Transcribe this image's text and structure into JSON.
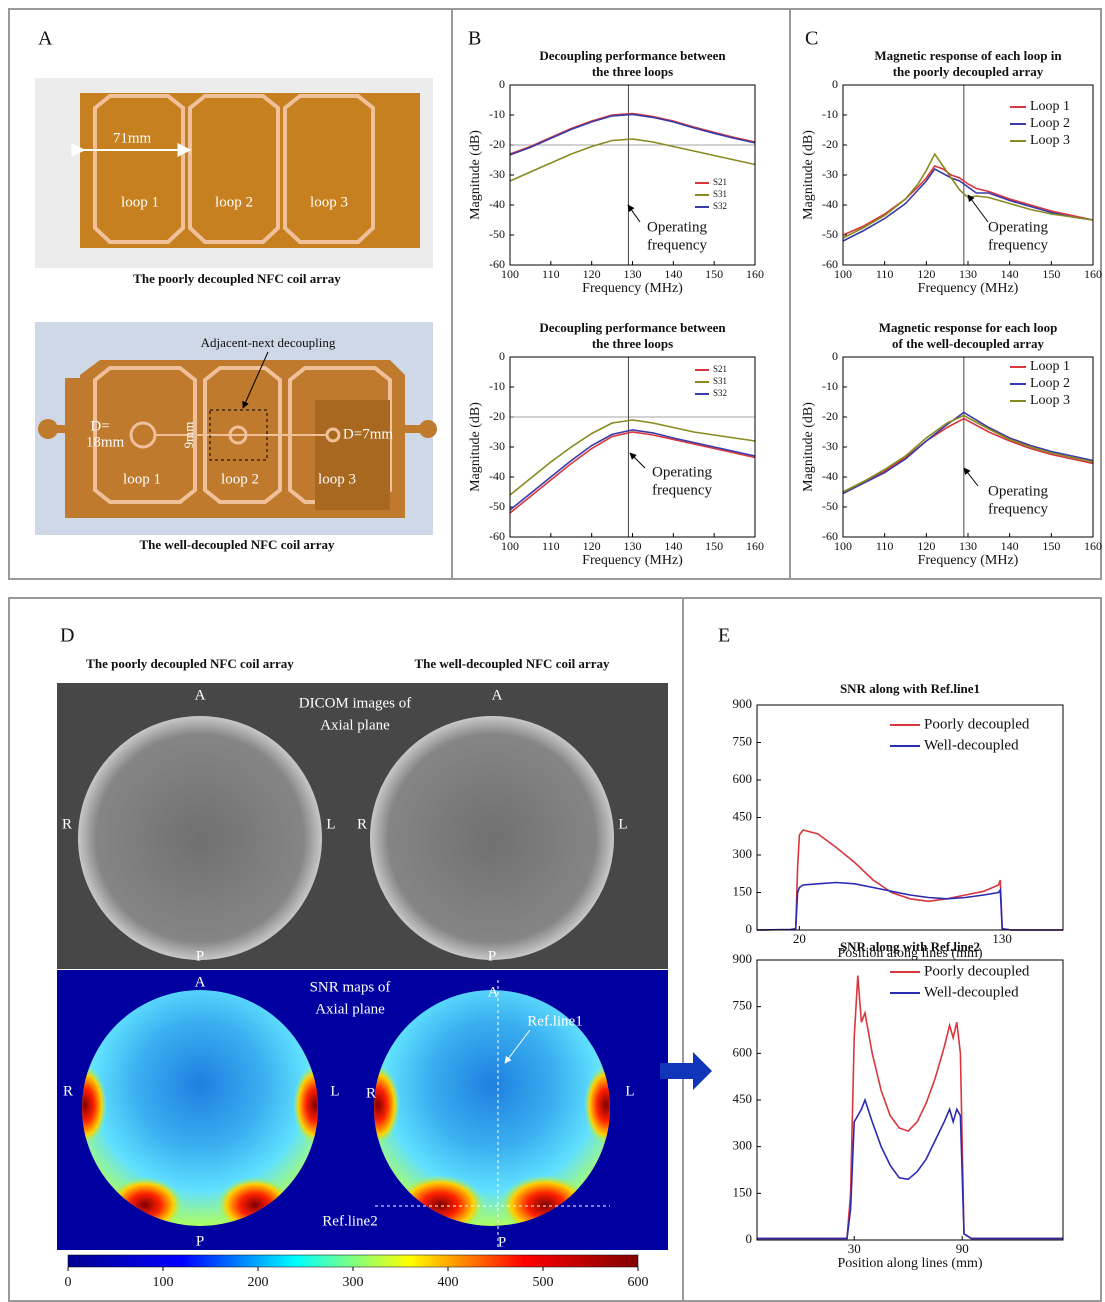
{
  "panels": {
    "labels": [
      "A",
      "B",
      "C",
      "D",
      "E"
    ],
    "A": {
      "photo1": {
        "dimension": "71mm",
        "loops": [
          "loop 1",
          "loop 2",
          "loop 3"
        ],
        "caption": "The poorly decoupled NFC coil array"
      },
      "photo2": {
        "annotation": "Adjacent-next decoupling",
        "d1": [
          "D=",
          "18mm"
        ],
        "gap": "9mm",
        "d2": "D=7mm",
        "loops": [
          "loop 1",
          "loop 2",
          "loop 3"
        ],
        "caption": "The well-decoupled NFC coil array"
      }
    },
    "D": {
      "headers": [
        "The poorly decoupled NFC coil array",
        "The well-decoupled NFC coil array"
      ],
      "dicom_title": [
        "DICOM images of",
        "Axial plane"
      ],
      "snr_title": [
        "SNR maps of",
        "Axial plane"
      ],
      "orientation": [
        "A",
        "R",
        "L",
        "P"
      ],
      "ref_lines": [
        "Ref.line1",
        "Ref.line2"
      ]
    }
  },
  "chart_data": [
    {
      "type": "line",
      "title": [
        "Decoupling performance between",
        "the three loops"
      ],
      "xlabel": "Frequency (MHz)",
      "ylabel": "Magnitude (dB)",
      "x": [
        100,
        105,
        110,
        115,
        120,
        125,
        130,
        135,
        140,
        145,
        150,
        155,
        160
      ],
      "series": [
        {
          "name": "S21",
          "color": "#d9363e",
          "values": [
            -23,
            -20.5,
            -17.5,
            -14.5,
            -12,
            -10,
            -9.5,
            -10.5,
            -12,
            -14,
            -15.8,
            -17.5,
            -19
          ]
        },
        {
          "name": "S31",
          "color": "#8a8a20",
          "values": [
            -32,
            -29,
            -26,
            -23,
            -20.5,
            -18.5,
            -18,
            -19,
            -20.5,
            -22,
            -23.5,
            -25,
            -26.5
          ]
        },
        {
          "name": "S32",
          "color": "#3a3aa8",
          "values": [
            -23.3,
            -20.8,
            -17.8,
            -14.8,
            -12.3,
            -10.3,
            -9.8,
            -10.8,
            -12.3,
            -14.3,
            -16.1,
            -17.8,
            -19.3
          ]
        }
      ],
      "xlim": [
        100,
        160
      ],
      "ylim": [
        -60,
        0
      ],
      "xticks": [
        100,
        110,
        120,
        130,
        140,
        150,
        160
      ],
      "yticks": [
        -60,
        -50,
        -40,
        -30,
        -20,
        -10,
        0
      ],
      "vline": 129,
      "hline": -20,
      "annotation": [
        "Operating",
        "frequency"
      ]
    },
    {
      "type": "line",
      "title": [
        "Decoupling performance between",
        "the three loops"
      ],
      "xlabel": "Frequency (MHz)",
      "ylabel": "Magnitude (dB)",
      "x": [
        100,
        105,
        110,
        115,
        120,
        125,
        130,
        135,
        140,
        145,
        150,
        155,
        160
      ],
      "series": [
        {
          "name": "S21",
          "color": "#d9363e",
          "values": [
            -52,
            -46.5,
            -41,
            -35.5,
            -30.5,
            -26.5,
            -25,
            -26,
            -27.5,
            -29,
            -30.5,
            -32,
            -33.5
          ]
        },
        {
          "name": "S31",
          "color": "#8a8a20",
          "values": [
            -46,
            -40.5,
            -35,
            -30,
            -25.5,
            -22,
            -21,
            -22,
            -23.5,
            -25,
            -26,
            -27,
            -28
          ]
        },
        {
          "name": "S32",
          "color": "#3a3aa8",
          "values": [
            -51,
            -45.5,
            -40,
            -34.5,
            -29.5,
            -25.8,
            -24.3,
            -25.3,
            -27,
            -28.5,
            -30,
            -31.5,
            -33
          ]
        }
      ],
      "xlim": [
        100,
        160
      ],
      "ylim": [
        -60,
        0
      ],
      "xticks": [
        100,
        110,
        120,
        130,
        140,
        150,
        160
      ],
      "yticks": [
        -60,
        -50,
        -40,
        -30,
        -20,
        -10,
        0
      ],
      "vline": 129,
      "hline": -20,
      "annotation": [
        "Operating",
        "frequency"
      ]
    },
    {
      "type": "line",
      "title": [
        "Magnetic response of each loop in",
        "the poorly decoupled array"
      ],
      "xlabel": "Frequency (MHz)",
      "ylabel": "Magnitude (dB)",
      "x": [
        100,
        105,
        110,
        115,
        118,
        120,
        122,
        124,
        126,
        128,
        130,
        132,
        135,
        140,
        145,
        150,
        155,
        160
      ],
      "series": [
        {
          "name": "Loop 1",
          "color": "#d9363e",
          "values": [
            -50,
            -47,
            -43,
            -38,
            -34,
            -31,
            -27,
            -28,
            -30,
            -31,
            -33,
            -34.5,
            -35.5,
            -38,
            -40,
            -42,
            -43.5,
            -45
          ]
        },
        {
          "name": "Loop 2",
          "color": "#3a3aa8",
          "values": [
            -52,
            -48.5,
            -44.5,
            -39.5,
            -35,
            -32,
            -28,
            -29.5,
            -31,
            -32,
            -34,
            -36,
            -36,
            -38.5,
            -40.5,
            -42.5,
            -44,
            -45
          ]
        },
        {
          "name": "Loop 3",
          "color": "#8a8a20",
          "values": [
            -51,
            -47.5,
            -43.5,
            -38,
            -33,
            -28.5,
            -23,
            -27,
            -31,
            -35,
            -37.5,
            -37,
            -37.5,
            -39.5,
            -41.5,
            -43,
            -44,
            -45
          ]
        }
      ],
      "xlim": [
        100,
        160
      ],
      "ylim": [
        -60,
        0
      ],
      "xticks": [
        100,
        110,
        120,
        130,
        140,
        150,
        160
      ],
      "yticks": [
        -60,
        -50,
        -40,
        -30,
        -20,
        -10,
        0
      ],
      "vline": 129,
      "annotation": [
        "Operating",
        "frequency"
      ]
    },
    {
      "type": "line",
      "title": [
        "Magnetic response for each loop",
        "of the well-decoupled array"
      ],
      "xlabel": "Frequency (MHz)",
      "ylabel": "Magnitude (dB)",
      "x": [
        100,
        105,
        110,
        115,
        120,
        125,
        129,
        135,
        140,
        145,
        150,
        155,
        160
      ],
      "series": [
        {
          "name": "Loop 1",
          "color": "#d9363e",
          "values": [
            -45,
            -41.5,
            -38,
            -33.5,
            -28,
            -23.5,
            -20.5,
            -25,
            -28,
            -30.5,
            -32.5,
            -34,
            -35.5
          ]
        },
        {
          "name": "Loop 2",
          "color": "#3a3aa8",
          "values": [
            -45.5,
            -42,
            -38.5,
            -34,
            -28,
            -22.5,
            -18.5,
            -23.5,
            -27,
            -29.5,
            -31.5,
            -33,
            -34.5
          ]
        },
        {
          "name": "Loop 3",
          "color": "#8a8a20",
          "values": [
            -45,
            -41.5,
            -37.5,
            -33,
            -27,
            -22,
            -19.5,
            -24,
            -27.5,
            -30,
            -32,
            -33.5,
            -35
          ]
        }
      ],
      "xlim": [
        100,
        160
      ],
      "ylim": [
        -60,
        0
      ],
      "xticks": [
        100,
        110,
        120,
        130,
        140,
        150,
        160
      ],
      "yticks": [
        -60,
        -50,
        -40,
        -30,
        -20,
        -10,
        0
      ],
      "vline": 129,
      "annotation": [
        "Operating",
        "frequency"
      ]
    },
    {
      "type": "line",
      "title": [
        "SNR along with Ref.line1"
      ],
      "xlabel": "Position along lines (mm)",
      "x": [
        -3,
        15,
        18,
        19,
        20,
        22,
        30,
        40,
        50,
        60,
        70,
        80,
        90,
        100,
        110,
        120,
        128,
        129,
        130,
        135,
        163
      ],
      "series": [
        {
          "name": "Poorly decoupled",
          "color": "#d9363e",
          "values": [
            0,
            2,
            5,
            250,
            380,
            400,
            385,
            330,
            270,
            200,
            150,
            125,
            115,
            125,
            140,
            155,
            180,
            200,
            5,
            0,
            0
          ]
        },
        {
          "name": "Well-decoupled",
          "color": "#2b2bb0",
          "values": [
            0,
            2,
            5,
            150,
            170,
            180,
            185,
            190,
            185,
            170,
            155,
            140,
            130,
            125,
            130,
            140,
            150,
            160,
            5,
            0,
            0
          ]
        }
      ],
      "xlim": [
        -3,
        163
      ],
      "ylim": [
        0,
        900
      ],
      "xticks": [
        20,
        130
      ],
      "yticks": [
        0,
        150,
        300,
        450,
        600,
        750,
        900
      ]
    },
    {
      "type": "line",
      "title": [
        "SNR along with Ref.line2"
      ],
      "xlabel": "Position along lines (mm)",
      "x": [
        -24,
        26,
        28,
        30,
        32,
        34,
        36,
        40,
        45,
        50,
        55,
        60,
        65,
        70,
        75,
        80,
        83,
        85,
        87,
        89,
        91,
        95,
        146
      ],
      "series": [
        {
          "name": "Poorly decoupled",
          "color": "#d9363e",
          "values": [
            5,
            5,
            150,
            650,
            850,
            700,
            730,
            600,
            480,
            400,
            360,
            350,
            380,
            440,
            520,
            620,
            690,
            650,
            700,
            600,
            20,
            5,
            5
          ]
        },
        {
          "name": "Well-decoupled",
          "color": "#2b2bb0",
          "values": [
            5,
            5,
            100,
            380,
            400,
            420,
            450,
            380,
            300,
            240,
            200,
            195,
            220,
            260,
            320,
            380,
            420,
            380,
            420,
            400,
            20,
            5,
            5
          ]
        }
      ],
      "xlim": [
        -24,
        146
      ],
      "ylim": [
        0,
        900
      ],
      "xticks": [
        30,
        90
      ],
      "yticks": [
        0,
        150,
        300,
        450,
        600,
        750,
        900
      ]
    },
    {
      "type": "colorbar",
      "colors": [
        "#00008f",
        "#0000ff",
        "#00ffff",
        "#ffff00",
        "#ff0000",
        "#800000"
      ],
      "xlim": [
        0,
        600
      ],
      "xticks": [
        0,
        100,
        200,
        300,
        400,
        500,
        600
      ]
    }
  ]
}
